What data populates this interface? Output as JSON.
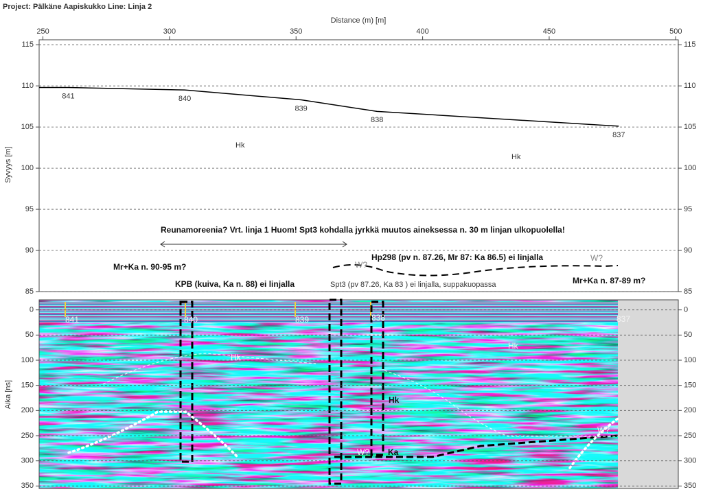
{
  "title": "Project: Pälkäne Aapiskukko  Line: Linja 2",
  "chart_data": [
    {
      "type": "line",
      "x_label": "Distance (m) [m]",
      "y_label": "Syvyys [m]",
      "xlim": [
        248.5,
        501
      ],
      "xticks": [
        250,
        300,
        350,
        400,
        450,
        500
      ],
      "ylim": [
        85,
        115.6
      ],
      "yticks": [
        85,
        90,
        95,
        100,
        105,
        110,
        115
      ],
      "grid": true,
      "color": "#000000",
      "x": [
        248.5,
        260,
        306,
        352,
        382,
        477.5
      ],
      "values": [
        109.8,
        109.8,
        109.5,
        108.3,
        106.9,
        105.1
      ],
      "point_labels": [
        null,
        "841",
        "840",
        "839",
        "838",
        "837"
      ],
      "annotations": [
        "Hk",
        "Hk",
        "Reunamoreenia? Vrt. linja 1 Huom! Spt3 kohdalla jyrkkä muutos aineksessa n. 30 m linjan ulkopuolella!",
        "Hp298 (pv n. 87.26, Mr 87: Ka 86.5) ei linjalla",
        "W?",
        "W?",
        "Mr+Ka n. 90-95 m?",
        "KPB (kuiva, Ka n. 88) ei linjalla",
        "Spt3 (pv 87.26, Ka 83 ) ei linjalla, suppakuopassa",
        "Mr+Ka n. 87-89 m?"
      ]
    },
    {
      "type": "radargram",
      "y_label": "Aika [ns]",
      "ylim": [
        -20,
        355
      ],
      "yticks": [
        0,
        50,
        100,
        150,
        200,
        250,
        300,
        350
      ],
      "grid": true,
      "annotations": [
        "841",
        "840",
        "839",
        "838",
        "837",
        "Hk",
        "Hk",
        "Hk",
        "W?",
        "Ka",
        "W?"
      ]
    }
  ]
}
